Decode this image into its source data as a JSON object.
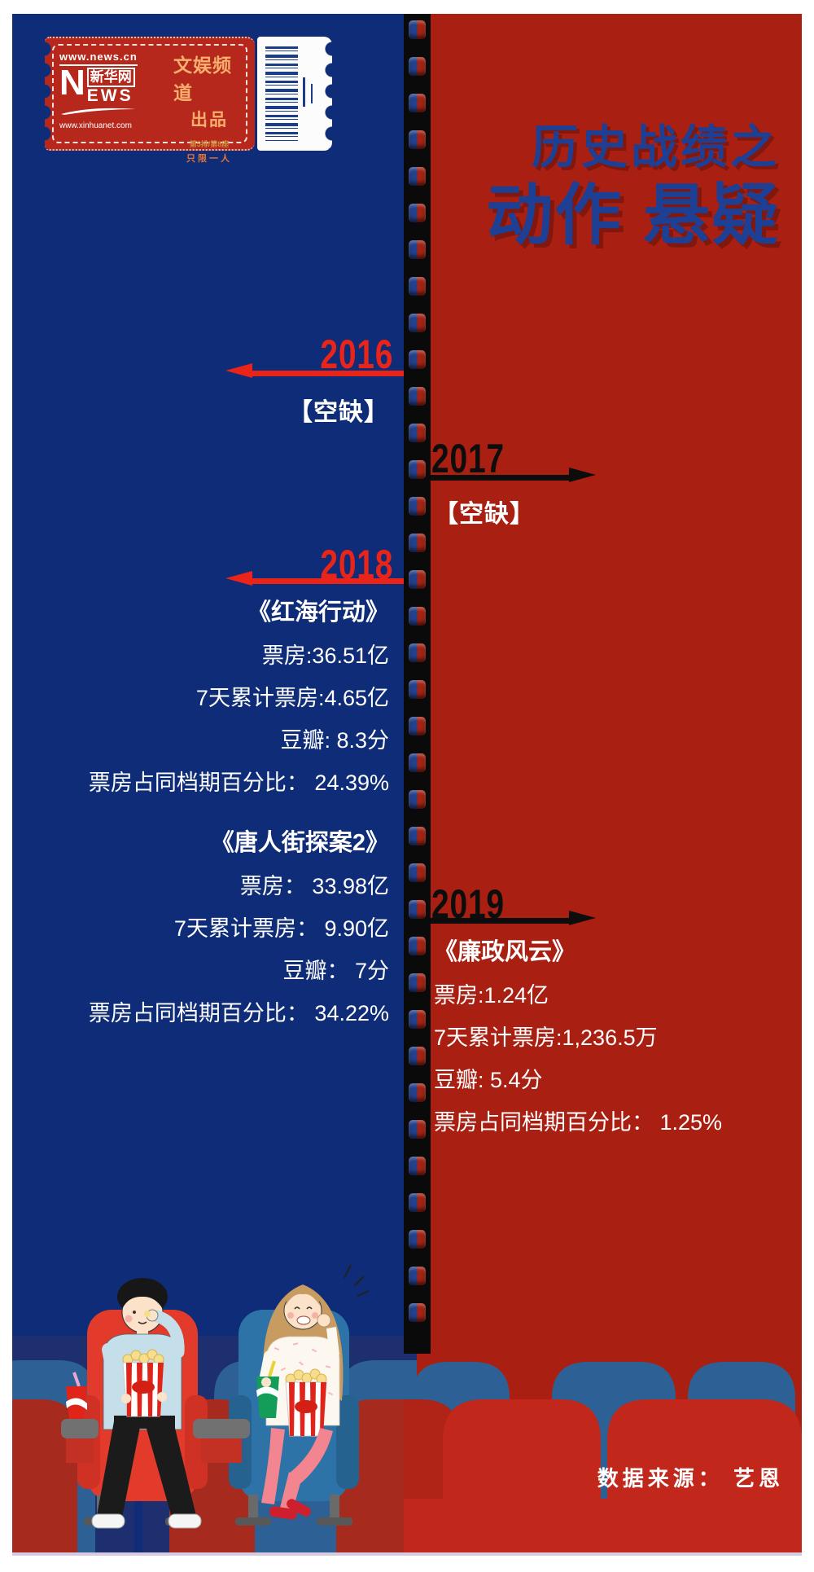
{
  "poster": {
    "title_line1": "历史战绩之",
    "title_line2": "动作 悬疑",
    "source": "数据来源： 艺恩",
    "colors": {
      "left_bg": "#0e2c77",
      "right_bg": "#a92013",
      "year_left_accent": "#ea2418",
      "year_right_accent": "#0d0d0d",
      "title_text": "#1d3f94",
      "body_text": "#ffffff"
    }
  },
  "ticket": {
    "url_top": "www.news.cn",
    "logo_n": "N",
    "logo_cn": "新华网",
    "logo_ews": "EWS",
    "url_bottom": "www.xinhuanet.com",
    "channel": "文娱频道",
    "produced_by": "出品",
    "seat_info": "第5排/第8座",
    "admit_one": "只限一人",
    "barcode_icon": "barcode"
  },
  "timeline": [
    {
      "year": "2016",
      "side": "left",
      "status": "【空缺】"
    },
    {
      "year": "2017",
      "side": "right",
      "status": "【空缺】"
    },
    {
      "year": "2018",
      "side": "left",
      "movies": [
        {
          "title": "《红海行动》",
          "stats": [
            "票房:36.51亿",
            "7天累计票房:4.65亿",
            "豆瓣: 8.3分",
            "票房占同档期百分比： 24.39%"
          ]
        },
        {
          "title": "《唐人街探案2》",
          "stats": [
            "票房： 33.98亿",
            "7天累计票房： 9.90亿",
            "豆瓣： 7分",
            "票房占同档期百分比： 34.22%"
          ]
        }
      ]
    },
    {
      "year": "2019",
      "side": "right",
      "movies": [
        {
          "title": "《廉政风云》",
          "stats": [
            "票房:1.24亿",
            "7天累计票房:1,236.5万",
            "豆瓣: 5.4分",
            "票房占同档期百分比： 1.25%"
          ]
        }
      ]
    }
  ]
}
